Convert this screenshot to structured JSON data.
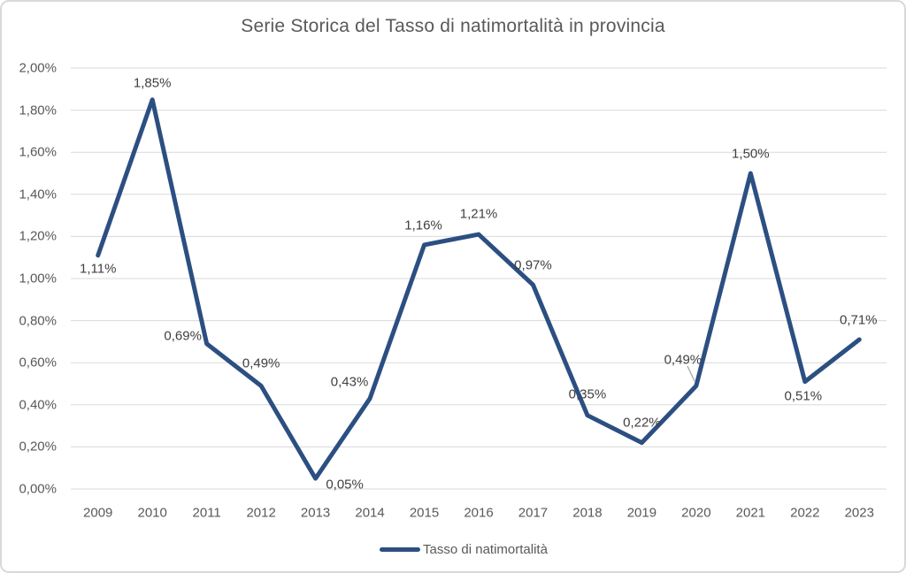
{
  "title": "Serie Storica del Tasso di natimortalità in provincia",
  "legend": {
    "label": "Tasso di natimortalità"
  },
  "colors": {
    "line": "#2c4f82",
    "grid": "#d9d9d9",
    "frame": "#d9d9d9",
    "axis_text": "#595959",
    "title_text": "#595959",
    "data_label_text": "#404040",
    "leader_line": "#a6a6a6",
    "background": "#ffffff"
  },
  "chart_data": {
    "type": "line",
    "title": "Serie Storica del Tasso di natimortalità in provincia",
    "categories": [
      "2009",
      "2010",
      "2011",
      "2012",
      "2013",
      "2014",
      "2015",
      "2016",
      "2017",
      "2018",
      "2019",
      "2020",
      "2021",
      "2022",
      "2023"
    ],
    "series": [
      {
        "name": "Tasso di natimortalità",
        "values": [
          1.11,
          1.85,
          0.69,
          0.49,
          0.05,
          0.43,
          1.16,
          1.21,
          0.97,
          0.35,
          0.22,
          0.49,
          1.5,
          0.51,
          0.71
        ]
      }
    ],
    "data_labels": [
      "1,11%",
      "1,85%",
      "0,69%",
      "0,49%",
      "0,05%",
      "0,43%",
      "1,16%",
      "1,21%",
      "0,97%",
      "0,35%",
      "0,22%",
      "0,49%",
      "1,50%",
      "0,51%",
      "0,71%"
    ],
    "y_ticks": [
      "0,00%",
      "0,20%",
      "0,40%",
      "0,60%",
      "0,80%",
      "1,00%",
      "1,20%",
      "1,40%",
      "1,60%",
      "1,80%",
      "2,00%"
    ],
    "ylim": [
      0,
      2.0
    ],
    "y_step": 0.2,
    "grid": true,
    "legend_position": "bottom",
    "xlabel": "",
    "ylabel": ""
  }
}
